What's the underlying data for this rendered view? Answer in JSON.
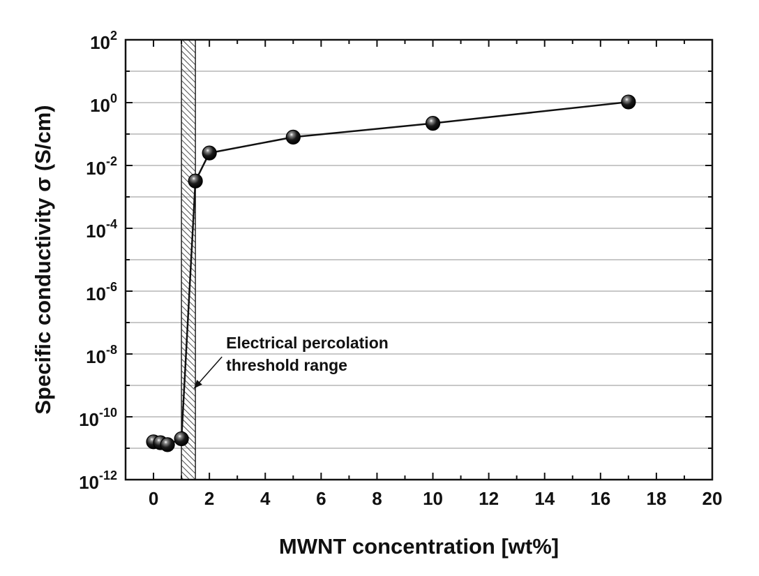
{
  "chart_data": {
    "type": "scatter",
    "title": "",
    "xlabel": "MWNT concentration [wt%]",
    "ylabel": "Specific conductivity σ (S/cm)",
    "xlim": [
      -1,
      20
    ],
    "ylim": [
      1e-12,
      100
    ],
    "yscale": "log",
    "grid": "horizontal",
    "x_ticks": [
      0,
      2,
      4,
      6,
      8,
      10,
      12,
      14,
      16,
      18,
      20
    ],
    "x_tick_labels": [
      "0",
      "2",
      "4",
      "6",
      "8",
      "10",
      "12",
      "14",
      "16",
      "18",
      "20"
    ],
    "y_ticks": [
      {
        "value": 100.0,
        "base": "10",
        "exp": "2"
      },
      {
        "value": 1.0,
        "base": "10",
        "exp": "0"
      },
      {
        "value": 0.01,
        "base": "10",
        "exp": "-2"
      },
      {
        "value": 0.0001,
        "base": "10",
        "exp": "-4"
      },
      {
        "value": 1e-06,
        "base": "10",
        "exp": "-6"
      },
      {
        "value": 1e-08,
        "base": "10",
        "exp": "-8"
      },
      {
        "value": 1e-10,
        "base": "10",
        "exp": "-10"
      },
      {
        "value": 1e-12,
        "base": "10",
        "exp": "-12"
      }
    ],
    "series": [
      {
        "x": [
          0,
          0.25,
          0.5,
          1,
          1.5,
          2,
          5,
          10,
          17
        ],
        "y": [
          1.6e-11,
          1.5e-11,
          1.3e-11,
          2e-11,
          0.0032,
          0.025,
          0.08,
          0.22,
          1.05
        ],
        "color": "#111111",
        "connected": true
      }
    ],
    "shaded_region": {
      "x_range": [
        1,
        1.5
      ],
      "pattern": "diagonal-hatch"
    },
    "annotations": [
      {
        "lines": [
          "Electrical percolation",
          "threshold range"
        ],
        "x": 2.6,
        "y": 1.5e-08,
        "arrow_to": {
          "x": 1.45,
          "y": 8e-10
        }
      }
    ]
  }
}
